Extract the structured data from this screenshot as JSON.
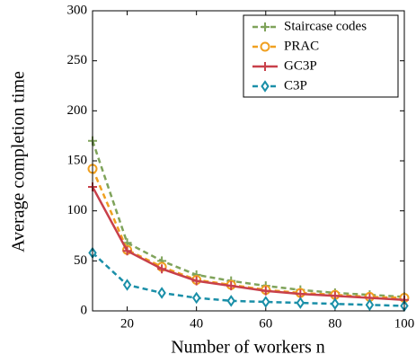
{
  "chart_data": {
    "type": "line",
    "xlabel": "Number of workers n",
    "ylabel": "Average completion time",
    "x": [
      10,
      20,
      30,
      40,
      50,
      60,
      70,
      80,
      90,
      100
    ],
    "series": [
      {
        "name": "Staircase codes",
        "color": "#7fa35a",
        "marker": "plus",
        "dashed": true,
        "values": [
          170,
          68,
          50,
          36,
          30,
          25,
          21,
          18,
          16,
          14
        ]
      },
      {
        "name": "PRAC",
        "color": "#f0a020",
        "marker": "circle",
        "dashed": true,
        "values": [
          142,
          61,
          44,
          31,
          26,
          21,
          18,
          16,
          14,
          13
        ]
      },
      {
        "name": "GC3P",
        "color": "#c8404a",
        "marker": "plus",
        "dashed": false,
        "values": [
          124,
          60,
          42,
          30,
          25,
          20,
          17,
          15,
          13,
          11
        ]
      },
      {
        "name": "C3P",
        "color": "#1a8fa8",
        "marker": "diamond",
        "dashed": true,
        "values": [
          58,
          26,
          18,
          13,
          10,
          9,
          8,
          7,
          6,
          5
        ]
      }
    ],
    "xlim": [
      10,
      100
    ],
    "xticks": [
      20,
      40,
      60,
      80,
      100
    ],
    "ylim": [
      0,
      300
    ],
    "yticks": [
      0,
      50,
      100,
      150,
      200,
      250,
      300
    ],
    "legend": "top-right"
  }
}
